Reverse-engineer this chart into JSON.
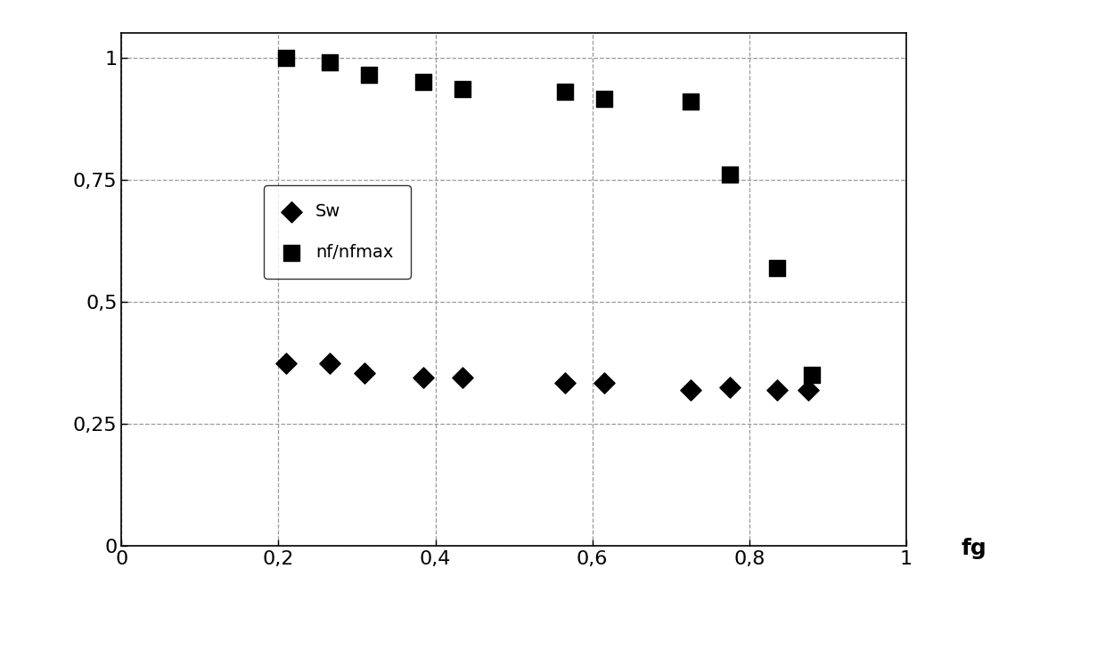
{
  "sw_x": [
    0.21,
    0.265,
    0.31,
    0.385,
    0.435,
    0.565,
    0.615,
    0.725,
    0.775,
    0.835,
    0.875
  ],
  "sw_y": [
    0.375,
    0.375,
    0.355,
    0.345,
    0.345,
    0.335,
    0.335,
    0.32,
    0.325,
    0.32,
    0.32
  ],
  "nf_x": [
    0.21,
    0.265,
    0.315,
    0.385,
    0.435,
    0.565,
    0.615,
    0.725,
    0.775,
    0.835,
    0.88
  ],
  "nf_y": [
    1.0,
    0.99,
    0.965,
    0.95,
    0.935,
    0.93,
    0.915,
    0.91,
    0.76,
    0.57,
    0.35
  ],
  "xlim": [
    0,
    1
  ],
  "ylim": [
    0,
    1.05
  ],
  "xticks": [
    0,
    0.2,
    0.4,
    0.6,
    0.8,
    1
  ],
  "yticks": [
    0,
    0.25,
    0.5,
    0.75,
    1
  ],
  "ytick_labels": [
    "0",
    "0,25",
    "0,5",
    "0,75",
    "1"
  ],
  "xtick_labels": [
    "0",
    "0,2",
    "0,4",
    "0,6",
    "0,8",
    "1"
  ],
  "xlabel": "fg",
  "grid_color": "#999999",
  "marker_color": "#000000",
  "bg_color": "#ffffff",
  "legend_sw": "Sw",
  "legend_nf": "nf/nfmax",
  "tick_fontsize": 16,
  "legend_fontsize": 14,
  "xlabel_fontsize": 18
}
